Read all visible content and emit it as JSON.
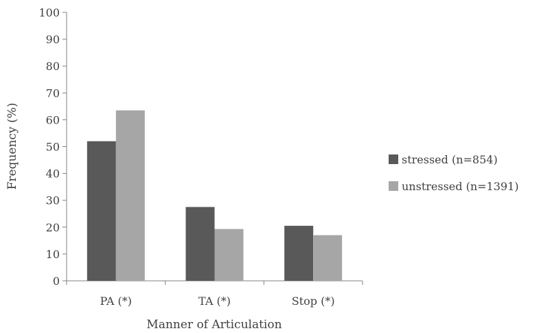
{
  "chart_data": {
    "type": "bar",
    "categories": [
      "PA (*)",
      "TA (*)",
      "Stop (*)"
    ],
    "series": [
      {
        "name": "stressed (n=854)",
        "values": [
          52,
          27.5,
          20.5
        ],
        "color": "#595959"
      },
      {
        "name": "unstressed (n=1391)",
        "values": [
          63.5,
          19.3,
          17
        ],
        "color": "#a6a6a6"
      }
    ],
    "xlabel": "Manner of Articulation",
    "ylabel": "Frequency (%)",
    "ylim": [
      0,
      100
    ],
    "yticks": [
      0,
      10,
      20,
      30,
      40,
      50,
      60,
      70,
      80,
      90,
      100
    ],
    "grid": false,
    "legend": "right",
    "axis_color": "#808080"
  }
}
